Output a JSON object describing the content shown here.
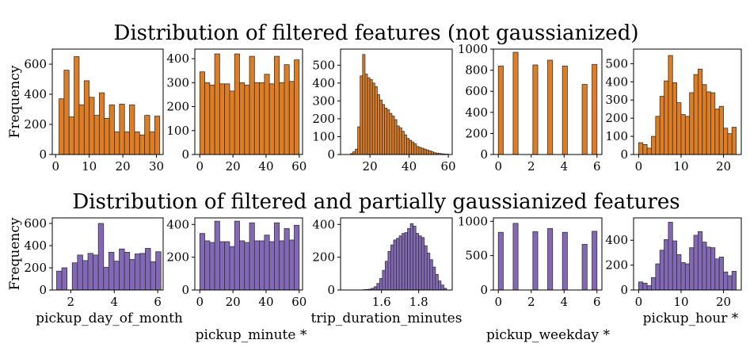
{
  "figure": {
    "row_titles": [
      "Distribution of filtered features (not gaussianized)",
      "Distribution of filtered and partially gaussianized features"
    ],
    "ylabel": "Frequency"
  },
  "colors": {
    "orange": "#e07c22",
    "purple": "#8468b8",
    "edge": "#333333"
  },
  "chart_data": [
    {
      "type": "bar",
      "row": 0,
      "col": 0,
      "xlim": [
        -1,
        32
      ],
      "ylim": [
        0,
        700
      ],
      "xticks": [
        0,
        10,
        20,
        30
      ],
      "yticks": [
        0,
        200,
        400,
        600
      ],
      "edges": [
        1.0,
        2.5,
        4.0,
        5.5,
        7.0,
        8.5,
        10.0,
        11.5,
        13.0,
        14.5,
        16.0,
        17.5,
        19.0,
        20.5,
        22.0,
        23.5,
        25.0,
        26.5,
        28.0,
        29.5,
        31.0
      ],
      "values": [
        370,
        560,
        250,
        650,
        330,
        490,
        380,
        260,
        410,
        240,
        330,
        150,
        335,
        150,
        330,
        150,
        130,
        260,
        150,
        255
      ],
      "color": "orange",
      "xlabel": "",
      "ylabel": "Frequency"
    },
    {
      "type": "bar",
      "row": 0,
      "col": 1,
      "xlim": [
        -3,
        62
      ],
      "ylim": [
        0,
        440
      ],
      "xticks": [
        0,
        20,
        40,
        60
      ],
      "yticks": [
        0,
        100,
        200,
        300,
        400
      ],
      "edges": [
        0,
        3,
        6,
        9,
        12,
        15,
        18,
        21,
        24,
        27,
        30,
        33,
        36,
        39,
        42,
        45,
        48,
        51,
        54,
        57,
        60
      ],
      "values": [
        345,
        300,
        290,
        420,
        295,
        295,
        265,
        420,
        300,
        290,
        410,
        300,
        300,
        335,
        295,
        410,
        300,
        375,
        305,
        395
      ],
      "color": "orange",
      "xlabel": "",
      "ylabel": ""
    },
    {
      "type": "bar",
      "row": 0,
      "col": 2,
      "xlim": [
        5,
        62
      ],
      "ylim": [
        0,
        590
      ],
      "xticks": [
        20,
        40,
        60
      ],
      "yticks": [
        0,
        100,
        200,
        300,
        400,
        500
      ],
      "edges": [
        10,
        11.25,
        12.5,
        13.75,
        15,
        16.25,
        17.5,
        18.75,
        20,
        21.25,
        22.5,
        23.75,
        25,
        26.25,
        27.5,
        28.75,
        30,
        31.25,
        32.5,
        33.75,
        35,
        36.25,
        37.5,
        38.75,
        40,
        41.25,
        42.5,
        43.75,
        45,
        46.25,
        47.5,
        48.75,
        50,
        51.25,
        52.5,
        53.75,
        55,
        56.25,
        57.5,
        58.75,
        60
      ],
      "values": [
        5,
        15,
        30,
        155,
        440,
        560,
        450,
        430,
        420,
        400,
        380,
        335,
        305,
        280,
        260,
        250,
        230,
        215,
        195,
        160,
        150,
        130,
        110,
        90,
        80,
        70,
        60,
        45,
        40,
        35,
        30,
        25,
        20,
        15,
        10,
        8,
        6,
        4,
        3,
        2
      ],
      "color": "orange",
      "xlabel": "",
      "ylabel": ""
    },
    {
      "type": "bar",
      "row": 0,
      "col": 3,
      "xlim": [
        -0.3,
        6.3
      ],
      "ylim": [
        0,
        1000
      ],
      "xticks": [
        0,
        2,
        4,
        6
      ],
      "yticks": [
        0,
        200,
        400,
        600,
        800,
        1000
      ],
      "edges": [
        0,
        0.3,
        0.6,
        0.9,
        1.2,
        1.5,
        1.8,
        2.1,
        2.4,
        2.7,
        3.0,
        3.3,
        3.6,
        3.9,
        4.2,
        4.5,
        4.8,
        5.1,
        5.4,
        5.7,
        6.0
      ],
      "values": [
        840,
        0,
        0,
        970,
        0,
        0,
        0,
        850,
        0,
        0,
        895,
        0,
        0,
        840,
        0,
        0,
        0,
        665,
        0,
        855
      ],
      "color": "orange",
      "xlabel": "",
      "ylabel": ""
    },
    {
      "type": "bar",
      "row": 0,
      "col": 4,
      "xlim": [
        -1.2,
        24.2
      ],
      "ylim": [
        0,
        580
      ],
      "xticks": [
        0,
        10,
        20
      ],
      "yticks": [
        0,
        100,
        200,
        300,
        400,
        500
      ],
      "edges": [
        0,
        1,
        2,
        3,
        4,
        5,
        6,
        7,
        8,
        9,
        10,
        11,
        12,
        13,
        14,
        15,
        16,
        17,
        18,
        19,
        20,
        21,
        22,
        23
      ],
      "values": [
        65,
        55,
        35,
        100,
        210,
        320,
        405,
        545,
        395,
        285,
        220,
        210,
        340,
        440,
        470,
        385,
        345,
        340,
        250,
        265,
        145,
        115,
        150
      ],
      "color": "orange",
      "xlabel": "",
      "ylabel": ""
    },
    {
      "type": "bar",
      "row": 1,
      "col": 0,
      "xlim": [
        1.15,
        6.25
      ],
      "ylim": [
        0,
        650
      ],
      "xticks": [
        2,
        4,
        6
      ],
      "yticks": [
        0,
        200,
        400,
        600
      ],
      "edges": [
        1.35,
        1.59,
        1.83,
        2.07,
        2.31,
        2.55,
        2.79,
        3.03,
        3.27,
        3.51,
        3.75,
        3.99,
        4.23,
        4.47,
        4.71,
        4.95,
        5.19,
        5.43,
        5.67,
        5.91,
        6.15
      ],
      "values": [
        170,
        200,
        0,
        245,
        315,
        265,
        330,
        315,
        600,
        205,
        340,
        260,
        370,
        340,
        275,
        325,
        330,
        375,
        255,
        345
      ],
      "color": "purple",
      "xlabel": "pickup_day_of_month",
      "ylabel": "Frequency"
    },
    {
      "type": "bar",
      "row": 1,
      "col": 1,
      "xlim": [
        -3,
        62
      ],
      "ylim": [
        0,
        440
      ],
      "xticks": [
        0,
        20,
        40,
        60
      ],
      "yticks": [
        0,
        200,
        400
      ],
      "edges": [
        0,
        3,
        6,
        9,
        12,
        15,
        18,
        21,
        24,
        27,
        30,
        33,
        36,
        39,
        42,
        45,
        48,
        51,
        54,
        57,
        60
      ],
      "values": [
        345,
        300,
        290,
        420,
        295,
        295,
        265,
        420,
        300,
        290,
        410,
        300,
        300,
        335,
        295,
        410,
        300,
        375,
        305,
        395
      ],
      "color": "purple",
      "xlabel": "pickup_minute *",
      "ylabel": ""
    },
    {
      "type": "bar",
      "row": 1,
      "col": 2,
      "xlim": [
        1.38,
        1.98
      ],
      "ylim": [
        0,
        440
      ],
      "xticks": [
        1.6,
        1.8
      ],
      "yticks": [
        0,
        200,
        400
      ],
      "edges": [
        1.5,
        1.515,
        1.53,
        1.545,
        1.56,
        1.575,
        1.59,
        1.605,
        1.62,
        1.635,
        1.65,
        1.665,
        1.68,
        1.695,
        1.71,
        1.725,
        1.74,
        1.755,
        1.77,
        1.785,
        1.8,
        1.815,
        1.83,
        1.845,
        1.86,
        1.875,
        1.89,
        1.905,
        1.92,
        1.935,
        1.95
      ],
      "values": [
        2,
        3,
        5,
        10,
        20,
        40,
        70,
        120,
        175,
        235,
        275,
        305,
        315,
        330,
        345,
        350,
        375,
        405,
        390,
        345,
        330,
        320,
        270,
        225,
        185,
        140,
        95,
        55,
        30,
        10
      ],
      "color": "purple",
      "xlabel": "trip_duration_minutes",
      "ylabel": ""
    },
    {
      "type": "bar",
      "row": 1,
      "col": 3,
      "xlim": [
        -0.3,
        6.3
      ],
      "ylim": [
        0,
        1050
      ],
      "xticks": [
        0,
        2,
        4,
        6
      ],
      "yticks": [
        0,
        500,
        1000
      ],
      "edges": [
        0,
        0.3,
        0.6,
        0.9,
        1.2,
        1.5,
        1.8,
        2.1,
        2.4,
        2.7,
        3.0,
        3.3,
        3.6,
        3.9,
        4.2,
        4.5,
        4.8,
        5.1,
        5.4,
        5.7,
        6.0
      ],
      "values": [
        840,
        0,
        0,
        970,
        0,
        0,
        0,
        850,
        0,
        0,
        895,
        0,
        0,
        840,
        0,
        0,
        0,
        665,
        0,
        855
      ],
      "color": "purple",
      "xlabel": "pickup_weekday *",
      "ylabel": ""
    },
    {
      "type": "bar",
      "row": 1,
      "col": 4,
      "xlim": [
        -1.2,
        24.2
      ],
      "ylim": [
        0,
        580
      ],
      "xticks": [
        0,
        10,
        20
      ],
      "yticks": [
        0,
        200,
        400
      ],
      "edges": [
        0,
        1,
        2,
        3,
        4,
        5,
        6,
        7,
        8,
        9,
        10,
        11,
        12,
        13,
        14,
        15,
        16,
        17,
        18,
        19,
        20,
        21,
        22,
        23
      ],
      "values": [
        65,
        55,
        35,
        100,
        210,
        320,
        405,
        545,
        395,
        285,
        220,
        210,
        340,
        440,
        470,
        385,
        345,
        340,
        250,
        265,
        145,
        115,
        150
      ],
      "color": "purple",
      "xlabel": "pickup_hour *",
      "ylabel": ""
    }
  ]
}
